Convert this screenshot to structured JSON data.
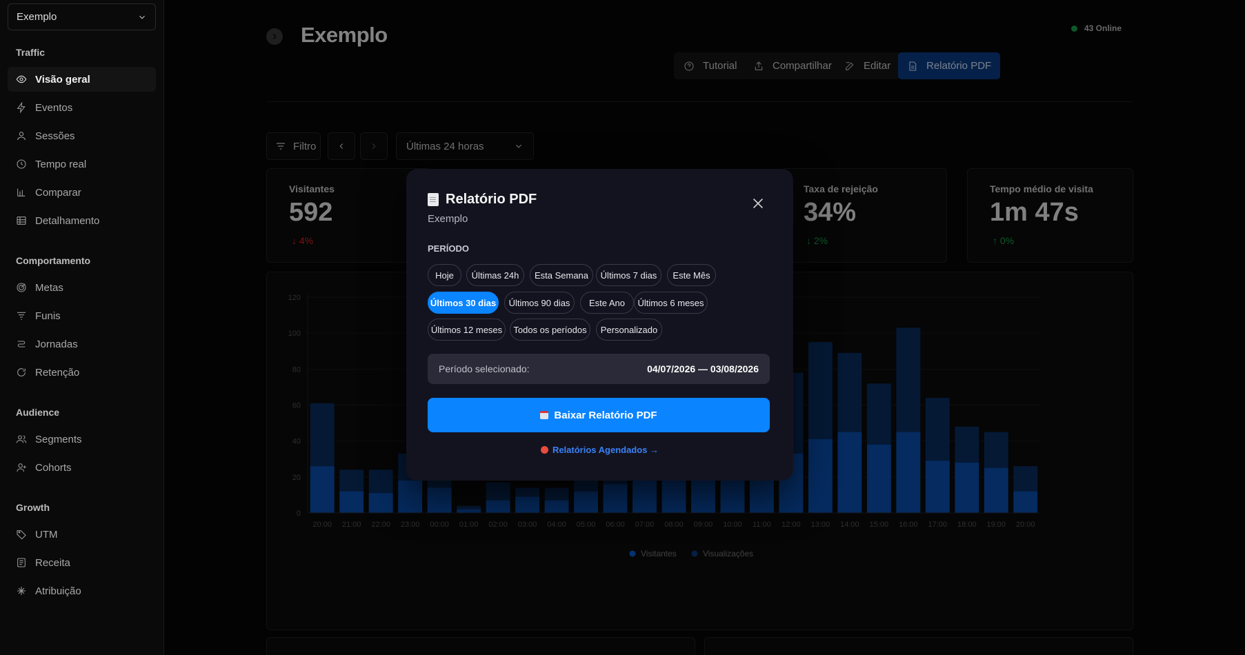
{
  "sidebar": {
    "workspace": "Exemplo",
    "sections": [
      {
        "title": "Traffic",
        "items": [
          {
            "label": "Visão geral",
            "icon": "eye-icon",
            "active": true
          },
          {
            "label": "Eventos",
            "icon": "bolt-icon"
          },
          {
            "label": "Sessões",
            "icon": "user-icon"
          },
          {
            "label": "Tempo real",
            "icon": "clock-icon"
          },
          {
            "label": "Comparar",
            "icon": "bar-chart-icon"
          },
          {
            "label": "Detalhamento",
            "icon": "table-icon"
          }
        ]
      },
      {
        "title": "Comportamento",
        "items": [
          {
            "label": "Metas",
            "icon": "target-icon"
          },
          {
            "label": "Funis",
            "icon": "funnel-icon"
          },
          {
            "label": "Jornadas",
            "icon": "route-icon"
          },
          {
            "label": "Retenção",
            "icon": "refresh-icon"
          }
        ]
      },
      {
        "title": "Audience",
        "items": [
          {
            "label": "Segments",
            "icon": "users-icon"
          },
          {
            "label": "Cohorts",
            "icon": "user-plus-icon"
          }
        ]
      },
      {
        "title": "Growth",
        "items": [
          {
            "label": "UTM",
            "icon": "tag-icon"
          },
          {
            "label": "Receita",
            "icon": "receipt-icon"
          },
          {
            "label": "Atribuição",
            "icon": "sparkle-icon"
          }
        ]
      }
    ]
  },
  "header": {
    "title": "Exemplo",
    "online": "43 Online",
    "buttons": {
      "tutorial": "Tutorial",
      "share": "Compartilhar",
      "edit": "Editar",
      "pdf": "Relatório PDF"
    }
  },
  "controls": {
    "filter": "Filtro",
    "range": "Últimas 24 horas"
  },
  "stats": [
    {
      "label": "Visitantes",
      "value": "592",
      "delta": "4%",
      "direction": "down",
      "color": "#dc2626"
    },
    {
      "label": "Taxa de rejeição",
      "value": "34%",
      "delta": "2%",
      "direction": "down",
      "color": "#16a34a"
    },
    {
      "label": "Tempo médio de visita",
      "value": "1m 47s",
      "delta": "0%",
      "direction": "up",
      "color": "#16a34a"
    }
  ],
  "chart_data": {
    "type": "bar",
    "categories": [
      "20:00",
      "21:00",
      "22:00",
      "23:00",
      "00:00",
      "01:00",
      "02:00",
      "03:00",
      "04:00",
      "05:00",
      "06:00",
      "07:00",
      "08:00",
      "09:00",
      "10:00",
      "11:00",
      "12:00",
      "13:00",
      "14:00",
      "15:00",
      "16:00",
      "17:00",
      "18:00",
      "19:00",
      "20:00"
    ],
    "series": [
      {
        "name": "Visitantes",
        "values": [
          26,
          12,
          11,
          18,
          14,
          2,
          7,
          9,
          7,
          12,
          16,
          30,
          35,
          36,
          37,
          32,
          33,
          41,
          45,
          38,
          45,
          29,
          28,
          25,
          12
        ]
      },
      {
        "name": "Visualizações",
        "values": [
          61,
          24,
          24,
          33,
          31,
          4,
          17,
          14,
          14,
          32,
          30,
          40,
          45,
          48,
          50,
          60,
          78,
          95,
          89,
          72,
          103,
          64,
          48,
          45,
          26
        ]
      }
    ],
    "yticks": [
      0,
      20,
      40,
      60,
      80,
      100,
      120
    ],
    "ylim": [
      0,
      120
    ],
    "colors": {
      "Visitantes": "#0a4fb0",
      "Visualizações": "#0a2e62"
    },
    "legend": "bottom"
  },
  "modal": {
    "title": "Relatório PDF",
    "subtitle": "Exemplo",
    "period_label": "PERÍODO",
    "pills": [
      "Hoje",
      "Últimas 24h",
      "Esta Semana",
      "Últimos 7 dias",
      "Este Mês",
      "Últimos 30 dias",
      "Últimos 90 dias",
      "Este Ano",
      "Últimos 6 meses",
      "Últimos 12 meses",
      "Todos os períodos",
      "Personalizado"
    ],
    "selected": "Últimos 30 dias",
    "selected_label": "Período selecionado:",
    "selected_range": "04/07/2026 — 03/08/2026",
    "download": "Baixar Relatório PDF",
    "scheduled": "Relatórios Agendados →"
  }
}
